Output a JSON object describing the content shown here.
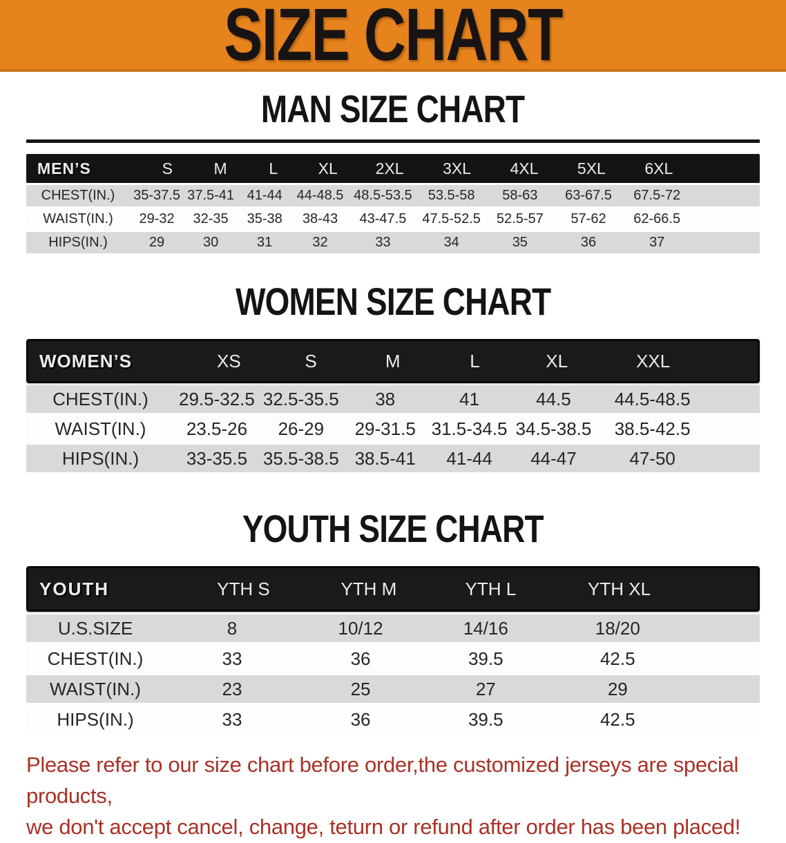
{
  "banner": {
    "title": "SIZE CHART",
    "bg_color": "#E6831D",
    "text_color": "#181413"
  },
  "colors": {
    "header_bar": "#141414",
    "row_shaded": "#D9D9D9",
    "row_plain": "#FDFDFD",
    "notice_text": "#A93126"
  },
  "sections": [
    {
      "id": "men",
      "heading": "MAN SIZE CHART",
      "header_label": "MEN’S",
      "columns": [
        "S",
        "M",
        "L",
        "XL",
        "2XL",
        "3XL",
        "4XL",
        "5XL",
        "6XL"
      ],
      "rows": [
        {
          "label": "CHEST(IN.)",
          "values": [
            "35-37.5",
            "37.5-41",
            "41-44",
            "44-48.5",
            "48.5-53.5",
            "53.5-58",
            "58-63",
            "63-67.5",
            "67.5-72"
          ]
        },
        {
          "label": "WAIST(IN.)",
          "values": [
            "29-32",
            "32-35",
            "35-38",
            "38-43",
            "43-47.5",
            "47.5-52.5",
            "52.5-57",
            "57-62",
            "62-66.5"
          ]
        },
        {
          "label": "HIPS(IN.)",
          "values": [
            "29",
            "30",
            "31",
            "32",
            "33",
            "34",
            "35",
            "36",
            "37"
          ]
        }
      ]
    },
    {
      "id": "women",
      "heading": "WOMEN SIZE CHART",
      "header_label": "WOMEN’S",
      "columns": [
        "XS",
        "S",
        "M",
        "L",
        "XL",
        "XXL"
      ],
      "rows": [
        {
          "label": "CHEST(IN.)",
          "values": [
            "29.5-32.5",
            "32.5-35.5",
            "38",
            "41",
            "44.5",
            "44.5-48.5"
          ]
        },
        {
          "label": "WAIST(IN.)",
          "values": [
            "23.5-26",
            "26-29",
            "29-31.5",
            "31.5-34.5",
            "34.5-38.5",
            "38.5-42.5"
          ]
        },
        {
          "label": "HIPS(IN.)",
          "values": [
            "33-35.5",
            "35.5-38.5",
            "38.5-41",
            "41-44",
            "44-47",
            "47-50"
          ]
        }
      ]
    },
    {
      "id": "youth",
      "heading": "YOUTH SIZE CHART",
      "header_label": "YOUTH",
      "columns": [
        "YTH S",
        "YTH M",
        "YTH L",
        "YTH XL"
      ],
      "rows": [
        {
          "label": "U.S.SIZE",
          "values": [
            "8",
            "10/12",
            "14/16",
            "18/20"
          ]
        },
        {
          "label": "CHEST(IN.)",
          "values": [
            "33",
            "36",
            "39.5",
            "42.5"
          ]
        },
        {
          "label": "WAIST(IN.)",
          "values": [
            "23",
            "25",
            "27",
            "29"
          ]
        },
        {
          "label": "HIPS(IN.)",
          "values": [
            "33",
            "36",
            "39.5",
            "42.5"
          ]
        }
      ]
    }
  ],
  "notice": {
    "line1": "Please refer to our size chart before order,the customized jerseys are special products,",
    "line2": "we don't accept cancel, change, teturn or refund after order has been placed!"
  }
}
